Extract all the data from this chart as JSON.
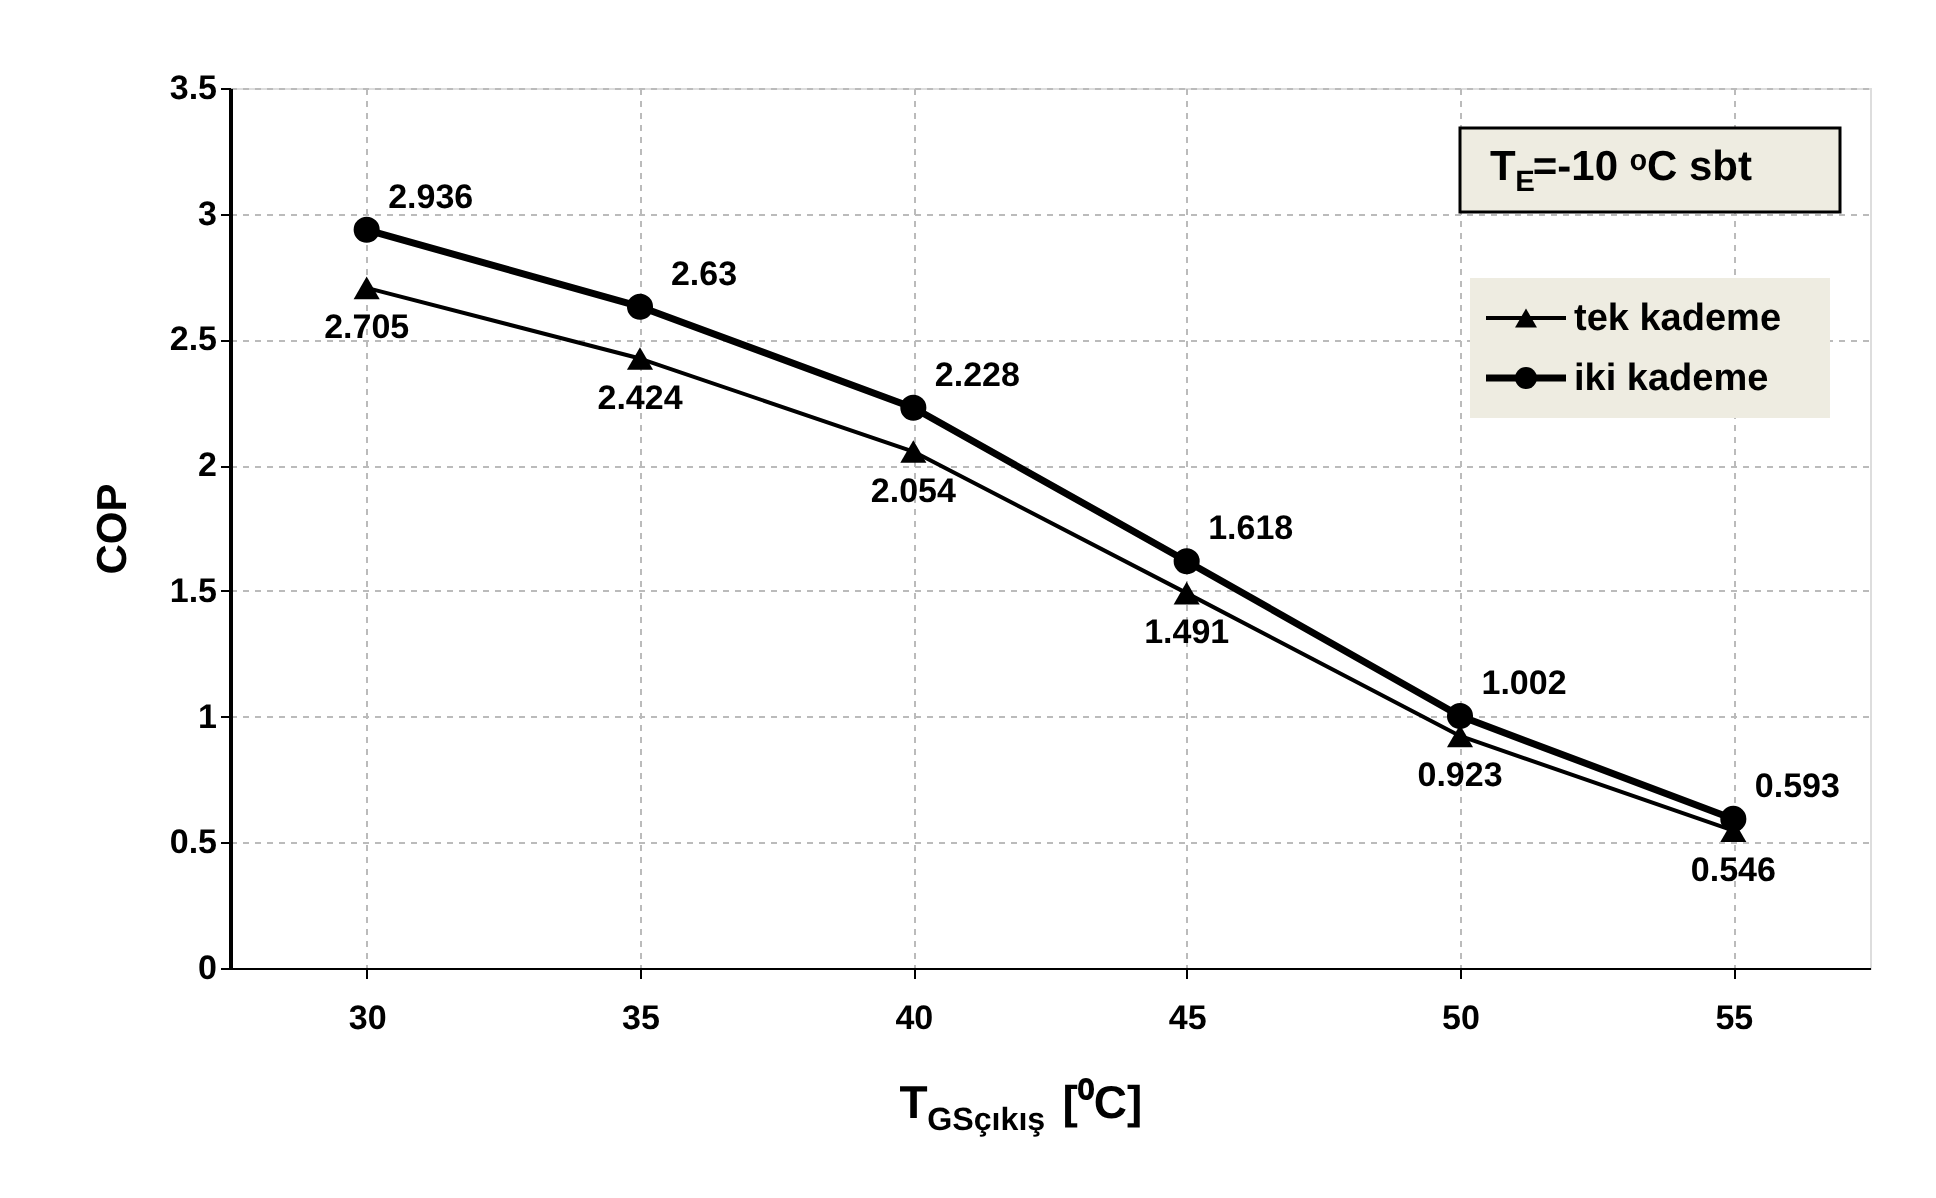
{
  "chart_data": {
    "type": "line",
    "xlabel": "T$_{GSçıkış}$ [⁰C]",
    "ylabel": "COP",
    "categories": [
      "30",
      "35",
      "40",
      "45",
      "50",
      "55"
    ],
    "series": [
      {
        "name": "tek kademe",
        "color": "#000000",
        "marker": "triangle",
        "values": [
          2.705,
          2.424,
          2.054,
          1.491,
          0.923,
          0.546
        ]
      },
      {
        "name": "iki kademe",
        "color": "#000000",
        "marker": "circle",
        "values": [
          2.936,
          2.63,
          2.228,
          1.618,
          1.002,
          0.593
        ]
      }
    ],
    "ylim": [
      0,
      3.5
    ],
    "yticks": [
      0,
      0.5,
      1,
      1.5,
      2,
      2.5,
      3,
      3.5
    ],
    "grid": true,
    "legend": "top right",
    "data_labels": true,
    "annotations": [
      "T$_{E}$=-10 ᵒC sbt"
    ]
  }
}
